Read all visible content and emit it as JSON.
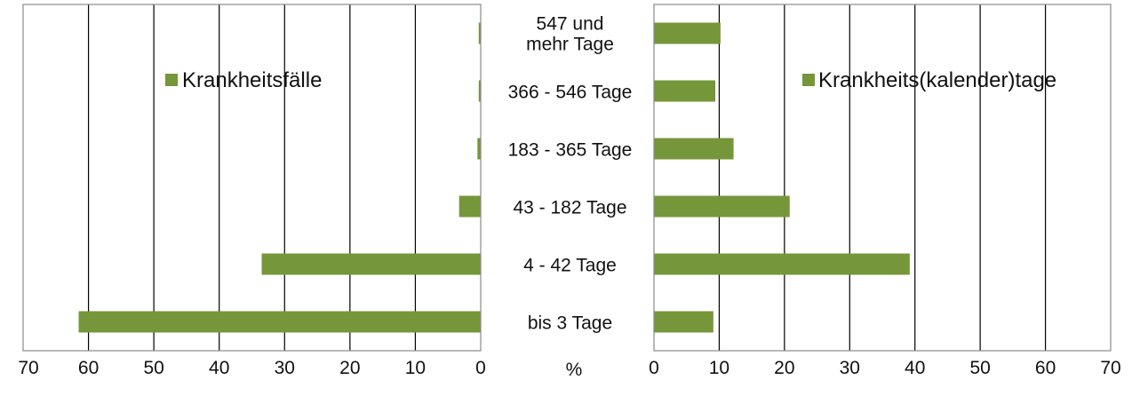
{
  "chart_data": {
    "type": "bar",
    "orientation": "horizontal",
    "layout": "back-to-back",
    "unit": "%",
    "categories": [
      "547 und mehr Tage",
      "366 - 546 Tage",
      "183 - 365 Tage",
      "43 - 182 Tage",
      "4 - 42 Tage",
      "bis 3 Tage"
    ],
    "series": [
      {
        "name": "Krankheitsfälle",
        "side": "left",
        "values": [
          0.3,
          0.3,
          0.5,
          3.3,
          33.5,
          61.5
        ]
      },
      {
        "name": "Krankheits(kalender)tage",
        "side": "right",
        "values": [
          10.2,
          9.4,
          12.2,
          20.8,
          39.2,
          9.1
        ]
      }
    ],
    "xlim": [
      0,
      70
    ],
    "ticks": [
      "0",
      "10",
      "20",
      "30",
      "40",
      "50",
      "60",
      "70"
    ],
    "left_ticks": [
      "70",
      "60",
      "50",
      "40",
      "30",
      "20",
      "10",
      "0"
    ],
    "grid": true,
    "legend_placement": "top-right of each panel",
    "colors": {
      "bar": "#76963a",
      "grid": "#000000",
      "frame": "#8a8a8a"
    }
  }
}
